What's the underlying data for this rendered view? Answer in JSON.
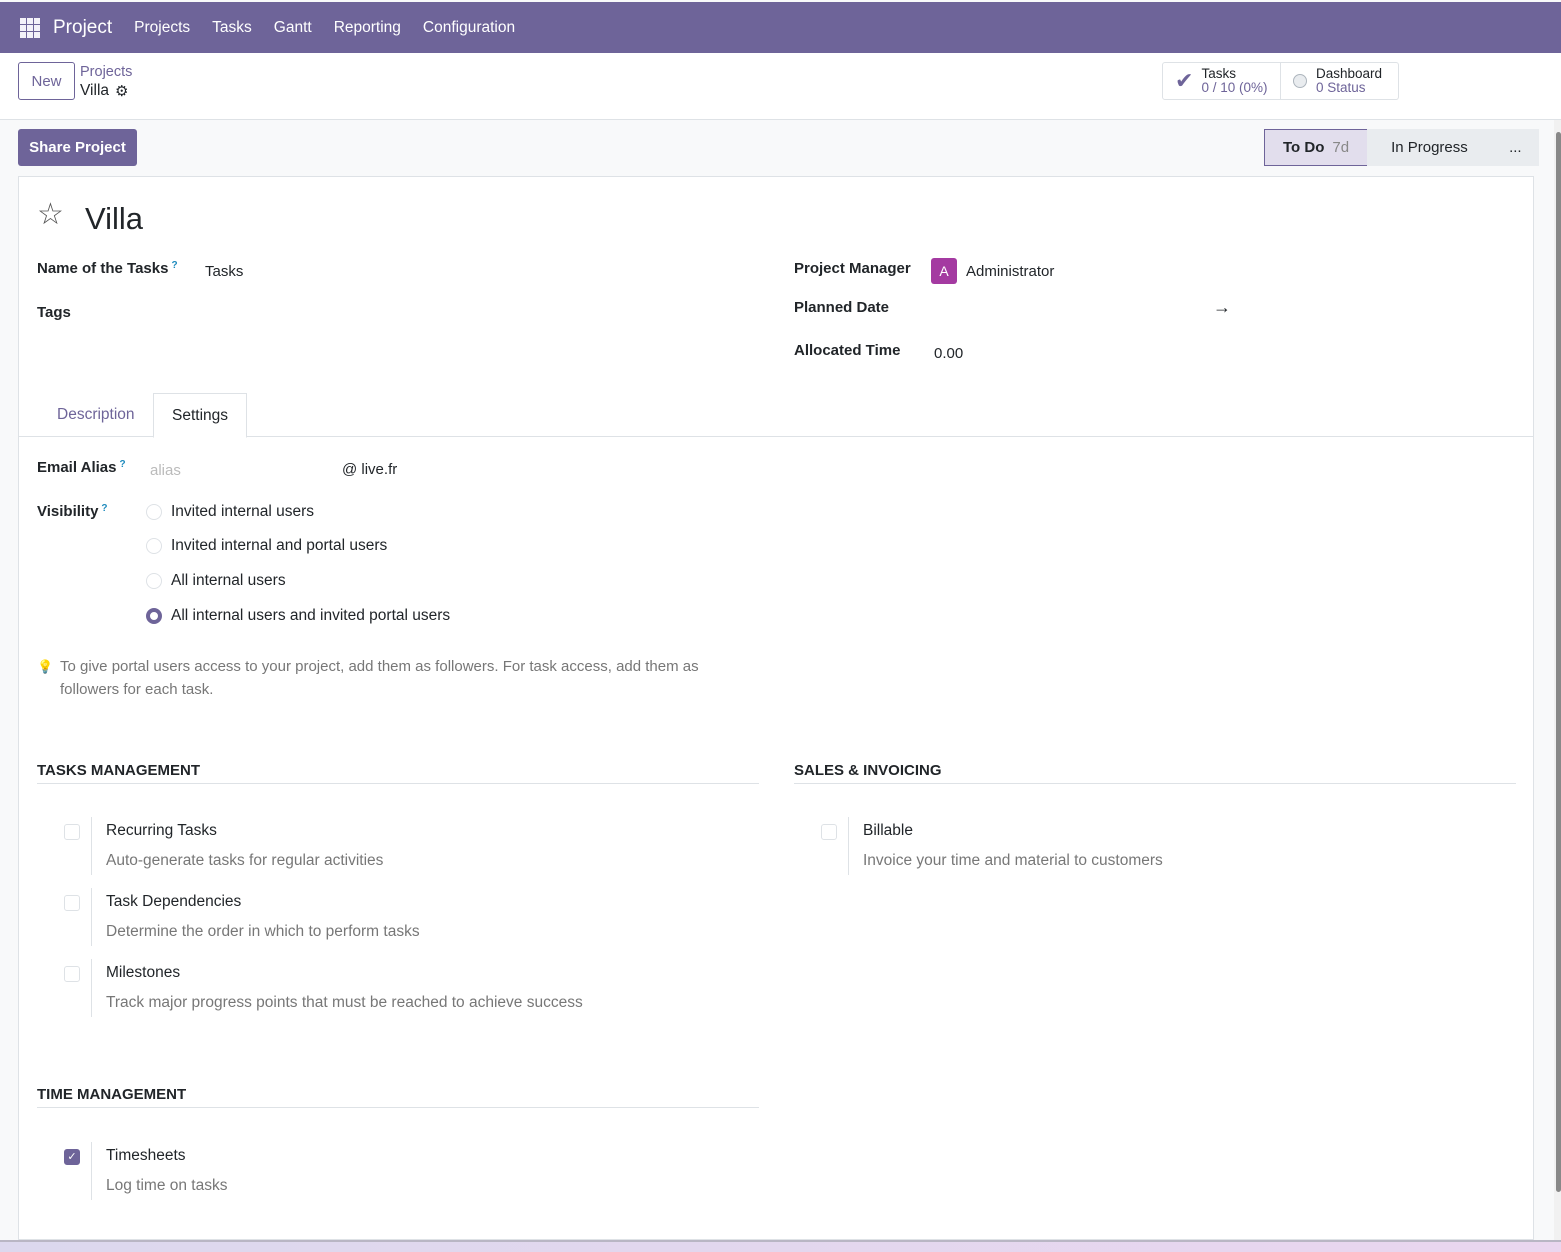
{
  "nav": {
    "app": "Project",
    "items": [
      "Projects",
      "Tasks",
      "Gantt",
      "Reporting",
      "Configuration"
    ]
  },
  "control": {
    "new_label": "New",
    "breadcrumb_parent": "Projects",
    "breadcrumb_current": "Villa"
  },
  "stats": {
    "tasks_label": "Tasks",
    "tasks_value": "0 / 10 (0%)",
    "dashboard_label": "Dashboard",
    "dashboard_value": "0 Status"
  },
  "actions": {
    "share_label": "Share Project"
  },
  "stages": {
    "active": "To Do",
    "active_duration": "7d",
    "next": "In Progress",
    "more": "..."
  },
  "form": {
    "title": "Villa",
    "name_of_tasks_label": "Name of the Tasks",
    "name_of_tasks_value": "Tasks",
    "tags_label": "Tags",
    "project_manager_label": "Project Manager",
    "project_manager_initial": "A",
    "project_manager_value": "Administrator",
    "planned_date_label": "Planned Date",
    "planned_date_arrow": "→",
    "allocated_time_label": "Allocated Time",
    "allocated_time_value": "0.00",
    "help_mark": "?"
  },
  "tabs": [
    "Description",
    "Settings"
  ],
  "active_tab": "Settings",
  "settings": {
    "email_alias_label": "Email Alias",
    "email_alias_placeholder": "alias",
    "email_domain": "@ live.fr",
    "visibility_label": "Visibility",
    "visibility_options": [
      "Invited internal users",
      "Invited internal and portal users",
      "All internal users",
      "All internal users and invited portal users"
    ],
    "visibility_selected": 3,
    "hint": "To give portal users access to your project, add them as followers. For task access, add them as followers for each task."
  },
  "sections": {
    "tasks_management": {
      "title": "TASKS MANAGEMENT",
      "options": [
        {
          "title": "Recurring Tasks",
          "desc": "Auto-generate tasks for regular activities",
          "checked": false
        },
        {
          "title": "Task Dependencies",
          "desc": "Determine the order in which to perform tasks",
          "checked": false
        },
        {
          "title": "Milestones",
          "desc": "Track major progress points that must be reached to achieve success",
          "checked": false
        }
      ]
    },
    "sales_invoicing": {
      "title": "SALES & INVOICING",
      "options": [
        {
          "title": "Billable",
          "desc": "Invoice your time and material to customers",
          "checked": false
        }
      ]
    },
    "time_management": {
      "title": "TIME MANAGEMENT",
      "options": [
        {
          "title": "Timesheets",
          "desc": "Log time on tasks",
          "checked": true
        }
      ]
    }
  },
  "colors": {
    "brand": "#6e6499",
    "avatar": "#a43aa1"
  }
}
